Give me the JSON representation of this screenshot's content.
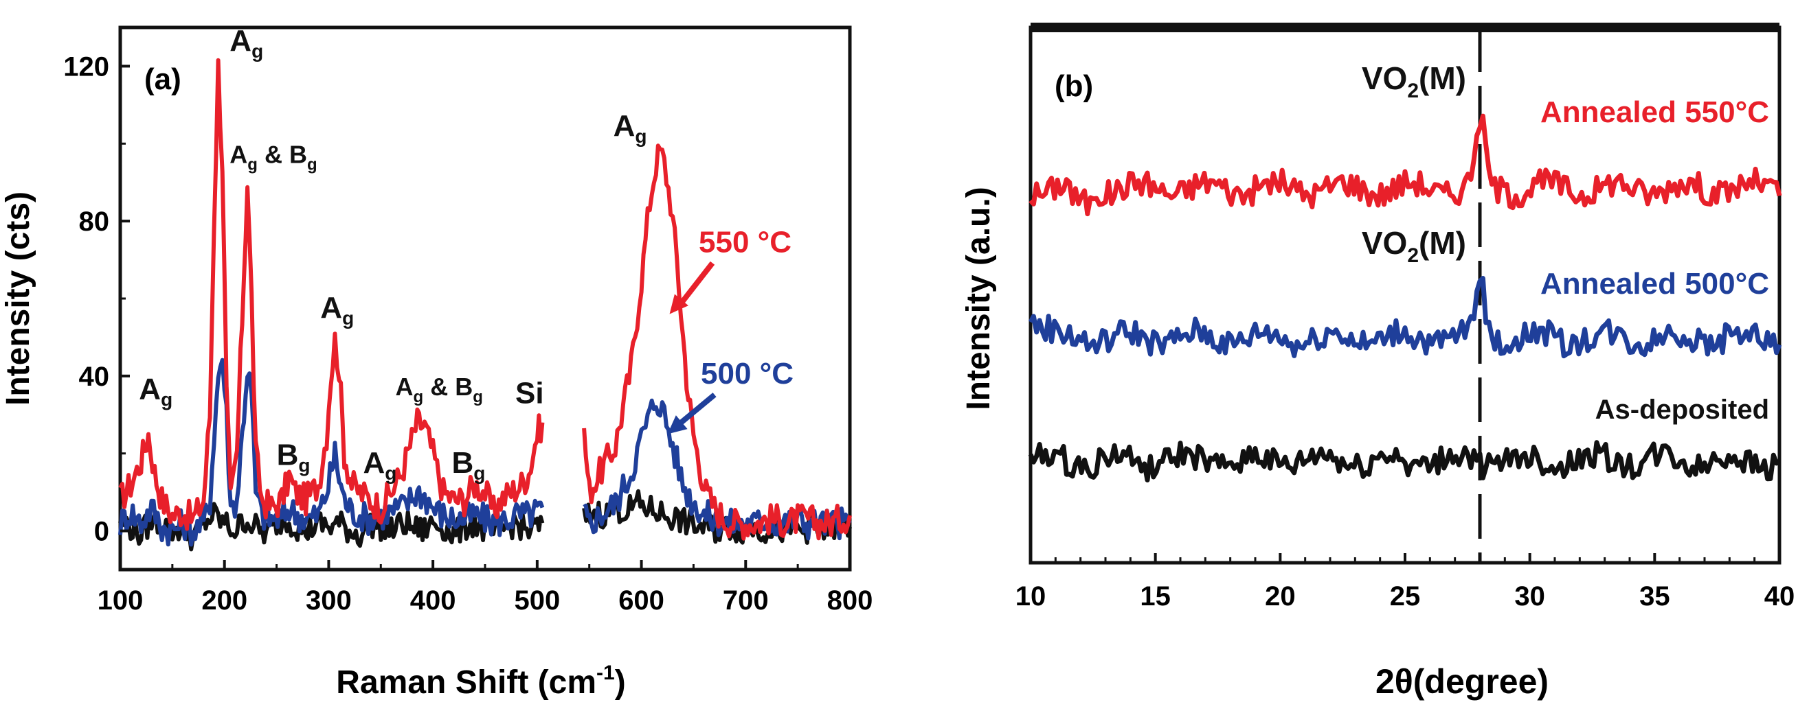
{
  "chart_data": [
    {
      "panel": "(a)",
      "type": "line",
      "xlabel": "Raman Shift (cm",
      "xlabel_sup": "-1",
      "xlabel_end": ")",
      "ylabel": "Intensity (cts)",
      "xlim": [
        100,
        800
      ],
      "ylim": [
        -10,
        130
      ],
      "xticks": [
        100,
        200,
        300,
        400,
        500,
        600,
        700,
        800
      ],
      "yticks": [
        0,
        40,
        80,
        120
      ],
      "gap": [
        505,
        545
      ],
      "grid": false,
      "series": [
        {
          "name": "550 °C",
          "color": "#e8202a",
          "points": [
            [
              100,
              8
            ],
            [
              110,
              12
            ],
            [
              120,
              18
            ],
            [
              127,
              25
            ],
            [
              133,
              15
            ],
            [
              140,
              8
            ],
            [
              150,
              4
            ],
            [
              160,
              5
            ],
            [
              170,
              3
            ],
            [
              180,
              8
            ],
            [
              186,
              30
            ],
            [
              190,
              80
            ],
            [
              194,
              120
            ],
            [
              198,
              95
            ],
            [
              202,
              35
            ],
            [
              206,
              8
            ],
            [
              212,
              20
            ],
            [
              217,
              55
            ],
            [
              222,
              90
            ],
            [
              226,
              60
            ],
            [
              230,
              20
            ],
            [
              236,
              8
            ],
            [
              245,
              6
            ],
            [
              255,
              8
            ],
            [
              262,
              14
            ],
            [
              268,
              10
            ],
            [
              278,
              8
            ],
            [
              290,
              12
            ],
            [
              298,
              25
            ],
            [
              302,
              40
            ],
            [
              306,
              49
            ],
            [
              310,
              42
            ],
            [
              315,
              20
            ],
            [
              322,
              12
            ],
            [
              330,
              10
            ],
            [
              340,
              8
            ],
            [
              350,
              6
            ],
            [
              360,
              10
            ],
            [
              370,
              15
            ],
            [
              378,
              22
            ],
            [
              385,
              28
            ],
            [
              392,
              27
            ],
            [
              400,
              20
            ],
            [
              410,
              10
            ],
            [
              420,
              8
            ],
            [
              430,
              8
            ],
            [
              440,
              12
            ],
            [
              450,
              10
            ],
            [
              458,
              5
            ],
            [
              465,
              8
            ],
            [
              475,
              10
            ],
            [
              485,
              12
            ],
            [
              492,
              15
            ],
            [
              500,
              25
            ],
            [
              505,
              28
            ]
          ],
          "points2": [
            [
              545,
              25
            ],
            [
              550,
              10
            ],
            [
              560,
              15
            ],
            [
              575,
              22
            ],
            [
              590,
              42
            ],
            [
              600,
              65
            ],
            [
              608,
              85
            ],
            [
              614,
              95
            ],
            [
              618,
              98
            ],
            [
              622,
              95
            ],
            [
              628,
              85
            ],
            [
              634,
              70
            ],
            [
              640,
              50
            ],
            [
              645,
              35
            ],
            [
              650,
              25
            ],
            [
              655,
              18
            ],
            [
              662,
              10
            ],
            [
              670,
              6
            ],
            [
              680,
              3
            ],
            [
              690,
              2
            ],
            [
              700,
              2
            ],
            [
              710,
              2
            ],
            [
              720,
              3
            ],
            [
              730,
              3
            ],
            [
              740,
              2
            ],
            [
              750,
              3
            ],
            [
              760,
              3
            ],
            [
              770,
              2
            ],
            [
              780,
              2
            ],
            [
              790,
              3
            ],
            [
              800,
              4
            ]
          ],
          "label": "550 °C"
        },
        {
          "name": "500 °C",
          "color": "#1f3f9a",
          "points": [
            [
              100,
              2
            ],
            [
              110,
              5
            ],
            [
              120,
              2
            ],
            [
              130,
              6
            ],
            [
              140,
              1
            ],
            [
              150,
              0
            ],
            [
              160,
              2
            ],
            [
              170,
              0
            ],
            [
              180,
              2
            ],
            [
              186,
              8
            ],
            [
              190,
              25
            ],
            [
              194,
              40
            ],
            [
              198,
              45
            ],
            [
              202,
              30
            ],
            [
              206,
              6
            ],
            [
              212,
              8
            ],
            [
              217,
              25
            ],
            [
              222,
              42
            ],
            [
              226,
              35
            ],
            [
              230,
              10
            ],
            [
              236,
              4
            ],
            [
              245,
              3
            ],
            [
              255,
              3
            ],
            [
              262,
              6
            ],
            [
              270,
              4
            ],
            [
              280,
              3
            ],
            [
              290,
              4
            ],
            [
              298,
              10
            ],
            [
              303,
              16
            ],
            [
              306,
              20
            ],
            [
              310,
              14
            ],
            [
              315,
              8
            ],
            [
              322,
              5
            ],
            [
              330,
              4
            ],
            [
              340,
              3
            ],
            [
              350,
              4
            ],
            [
              360,
              5
            ],
            [
              370,
              6
            ],
            [
              378,
              8
            ],
            [
              385,
              10
            ],
            [
              392,
              9
            ],
            [
              400,
              6
            ],
            [
              410,
              4
            ],
            [
              420,
              3
            ],
            [
              430,
              3
            ],
            [
              440,
              4
            ],
            [
              450,
              3
            ],
            [
              460,
              2
            ],
            [
              470,
              3
            ],
            [
              480,
              4
            ],
            [
              490,
              4
            ],
            [
              500,
              5
            ],
            [
              505,
              6
            ]
          ],
          "points2": [
            [
              545,
              4
            ],
            [
              550,
              2
            ],
            [
              560,
              4
            ],
            [
              575,
              7
            ],
            [
              590,
              15
            ],
            [
              600,
              24
            ],
            [
              608,
              30
            ],
            [
              614,
              34
            ],
            [
              618,
              33
            ],
            [
              622,
              30
            ],
            [
              628,
              24
            ],
            [
              634,
              18
            ],
            [
              640,
              12
            ],
            [
              648,
              8
            ],
            [
              655,
              6
            ],
            [
              662,
              4
            ],
            [
              670,
              3
            ],
            [
              680,
              2
            ],
            [
              690,
              2
            ],
            [
              700,
              2
            ],
            [
              710,
              2
            ],
            [
              720,
              3
            ],
            [
              730,
              2
            ],
            [
              740,
              2
            ],
            [
              750,
              3
            ],
            [
              760,
              2
            ],
            [
              770,
              2
            ],
            [
              780,
              2
            ],
            [
              790,
              2
            ],
            [
              800,
              2
            ]
          ],
          "label": "500 °C"
        },
        {
          "name": "As-deposited",
          "color": "#111111",
          "points": [
            [
              100,
              3
            ],
            [
              110,
              1
            ],
            [
              120,
              -1
            ],
            [
              130,
              3
            ],
            [
              140,
              2
            ],
            [
              150,
              0
            ],
            [
              160,
              1
            ],
            [
              170,
              -2
            ],
            [
              180,
              2
            ],
            [
              190,
              4
            ],
            [
              200,
              2
            ],
            [
              210,
              0
            ],
            [
              220,
              3
            ],
            [
              230,
              1
            ],
            [
              240,
              -1
            ],
            [
              250,
              2
            ],
            [
              260,
              3
            ],
            [
              270,
              1
            ],
            [
              280,
              0
            ],
            [
              290,
              2
            ],
            [
              300,
              1
            ],
            [
              310,
              2
            ],
            [
              320,
              0
            ],
            [
              330,
              -1
            ],
            [
              340,
              2
            ],
            [
              350,
              1
            ],
            [
              360,
              0
            ],
            [
              370,
              2
            ],
            [
              380,
              1
            ],
            [
              390,
              0
            ],
            [
              400,
              2
            ],
            [
              410,
              1
            ],
            [
              420,
              -1
            ],
            [
              430,
              1
            ],
            [
              440,
              2
            ],
            [
              450,
              0
            ],
            [
              460,
              -1
            ],
            [
              470,
              1
            ],
            [
              480,
              2
            ],
            [
              490,
              0
            ],
            [
              500,
              1
            ],
            [
              505,
              2
            ]
          ],
          "points2": [
            [
              545,
              3
            ],
            [
              555,
              5
            ],
            [
              565,
              4
            ],
            [
              575,
              6
            ],
            [
              585,
              5
            ],
            [
              595,
              7
            ],
            [
              605,
              6
            ],
            [
              615,
              5
            ],
            [
              625,
              4
            ],
            [
              635,
              3
            ],
            [
              645,
              2
            ],
            [
              655,
              1
            ],
            [
              665,
              1
            ],
            [
              675,
              0
            ],
            [
              685,
              1
            ],
            [
              695,
              0
            ],
            [
              705,
              1
            ],
            [
              715,
              0
            ],
            [
              725,
              1
            ],
            [
              735,
              0
            ],
            [
              745,
              1
            ],
            [
              755,
              0
            ],
            [
              765,
              1
            ],
            [
              775,
              0
            ],
            [
              785,
              1
            ],
            [
              800,
              1
            ]
          ]
        }
      ],
      "annotations": [
        {
          "base": "A",
          "sub": "g",
          "x": 118,
          "y": 34
        },
        {
          "base": "A",
          "sub": "g",
          "x": 205,
          "y": 124
        },
        {
          "base": "A",
          "sub": "g",
          "extra": " & B",
          "sub2": "g",
          "x": 205,
          "y": 95
        },
        {
          "base": "B",
          "sub": "g",
          "x": 250,
          "y": 17
        },
        {
          "base": "A",
          "sub": "g",
          "x": 292,
          "y": 55
        },
        {
          "base": "A",
          "sub": "g",
          "x": 333,
          "y": 15
        },
        {
          "base": "A",
          "sub": "g",
          "extra": " & B",
          "sub2": "g",
          "x": 364,
          "y": 35
        },
        {
          "base": "B",
          "sub": "g",
          "x": 418,
          "y": 15
        },
        {
          "base": "Si",
          "sub": "",
          "x": 479,
          "y": 33
        },
        {
          "base": "A",
          "sub": "g",
          "x": 573,
          "y": 102
        }
      ],
      "legend_labels": [
        {
          "text": "550 °C",
          "color": "#e8202a",
          "x": 655,
          "y": 72
        },
        {
          "text": "500 °C",
          "color": "#1f3f9a",
          "x": 657,
          "y": 38
        }
      ]
    },
    {
      "panel": "(b)",
      "type": "line",
      "xlabel": "2θ(degree)",
      "ylabel": "Intensity (a.u.)",
      "xlim": [
        10,
        40
      ],
      "ylim": [
        0,
        100
      ],
      "xticks": [
        10,
        15,
        20,
        25,
        30,
        35,
        40
      ],
      "marker_x": 28,
      "grid": false,
      "series": [
        {
          "name": "Annealed 550°C",
          "color": "#e8202a",
          "baseline": 70,
          "peak": 12
        },
        {
          "name": "Annealed 500°C",
          "color": "#1f3f9a",
          "baseline": 42,
          "peak": 10
        },
        {
          "name": "As-deposited",
          "color": "#111111",
          "baseline": 19,
          "peak": 0
        }
      ],
      "labels": [
        {
          "text": "Annealed 550°C",
          "color": "#e8202a"
        },
        {
          "text": "Annealed 500°C",
          "color": "#1f3f9a"
        },
        {
          "text": "As-deposited",
          "color": "#111111"
        }
      ],
      "peak_label": "VO",
      "peak_label_sub": "2",
      "peak_label_end": "(M)"
    }
  ]
}
